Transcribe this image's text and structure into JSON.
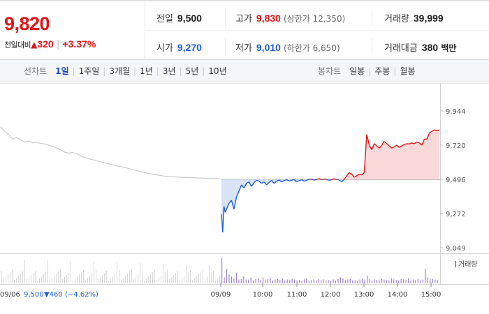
{
  "header": {
    "price": "9,820",
    "change_label": "전일대비",
    "change_arrow": "▲",
    "change_value": "320",
    "change_rate": "+3.37%",
    "stats": {
      "prev_close": {
        "label": "전일",
        "value": "9,500"
      },
      "high": {
        "label": "고가",
        "value": "9,830",
        "note": "(상한가 12,350)"
      },
      "volume": {
        "label": "거래량",
        "value": "39,999"
      },
      "open": {
        "label": "시가",
        "value": "9,270"
      },
      "low": {
        "label": "저가",
        "value": "9,010",
        "note": "(하한가 6,650)"
      },
      "turnover": {
        "label": "거래대금",
        "value": "380",
        "unit": "백만"
      }
    }
  },
  "line_tabs": {
    "label": "선차트",
    "items": [
      "1일",
      "1주일",
      "3개월",
      "1년",
      "3년",
      "5년",
      "10년"
    ],
    "active": "1일"
  },
  "candle_tabs": {
    "label": "봉차트",
    "items": [
      "일봉",
      "주봉",
      "월봉"
    ]
  },
  "colors": {
    "up": "#e2151a",
    "down": "#1f5ed4",
    "up_fill": "#fbd9da",
    "down_fill": "#d8e3f6",
    "prev_line": "#c9c9c9",
    "volume_bar": "#9b86c9"
  },
  "chart_data": {
    "type": "line",
    "y_ticks": [
      "9,944",
      "9,720",
      "9,496",
      "9,272",
      "9,049"
    ],
    "ylim": [
      9049,
      9944
    ],
    "baseline": 9496,
    "x_ticks": [
      "09/09",
      "10:00",
      "11:00",
      "12:00",
      "13:00",
      "14:00",
      "15:00"
    ],
    "prev_day_label": "09/06",
    "prev_day_close": "9,500",
    "prev_day_change": "▼460",
    "prev_day_rate": "(−4.62%)",
    "volume_legend": "거래량",
    "prev_day_series": [
      [
        0,
        9840
      ],
      [
        3,
        9810
      ],
      [
        6,
        9790
      ],
      [
        9,
        9760
      ],
      [
        12,
        9770
      ],
      [
        15,
        9755
      ],
      [
        18,
        9740
      ],
      [
        21,
        9748
      ],
      [
        24,
        9735
      ],
      [
        27,
        9740
      ],
      [
        30,
        9732
      ],
      [
        33,
        9728
      ],
      [
        36,
        9720
      ],
      [
        39,
        9712
      ],
      [
        42,
        9702
      ],
      [
        45,
        9690
      ],
      [
        48,
        9675
      ],
      [
        51,
        9668
      ],
      [
        54,
        9672
      ],
      [
        57,
        9665
      ],
      [
        60,
        9650
      ],
      [
        63,
        9640
      ],
      [
        66,
        9632
      ],
      [
        69,
        9625
      ],
      [
        72,
        9618
      ],
      [
        75,
        9612
      ],
      [
        78,
        9605
      ],
      [
        81,
        9598
      ],
      [
        84,
        9592
      ],
      [
        87,
        9585
      ],
      [
        90,
        9580
      ],
      [
        93,
        9575
      ],
      [
        96,
        9568
      ],
      [
        99,
        9560
      ],
      [
        102,
        9554
      ],
      [
        105,
        9548
      ],
      [
        108,
        9542
      ],
      [
        111,
        9536
      ],
      [
        114,
        9530
      ],
      [
        117,
        9526
      ],
      [
        120,
        9522
      ],
      [
        123,
        9518
      ],
      [
        126,
        9516
      ],
      [
        129,
        9514
      ],
      [
        132,
        9512
      ],
      [
        135,
        9510
      ],
      [
        138,
        9509
      ],
      [
        141,
        9508
      ],
      [
        144,
        9507
      ],
      [
        147,
        9506
      ],
      [
        150,
        9505
      ],
      [
        153,
        9504
      ],
      [
        156,
        9503
      ],
      [
        159,
        9502
      ],
      [
        162,
        9501
      ],
      [
        165,
        9500
      ]
    ],
    "today_series": [
      [
        0,
        9270
      ],
      [
        1,
        9150
      ],
      [
        2,
        9320
      ],
      [
        3,
        9280
      ],
      [
        4,
        9300
      ],
      [
        6,
        9340
      ],
      [
        8,
        9360
      ],
      [
        10,
        9300
      ],
      [
        12,
        9380
      ],
      [
        14,
        9420
      ],
      [
        16,
        9460
      ],
      [
        18,
        9440
      ],
      [
        20,
        9470
      ],
      [
        22,
        9480
      ],
      [
        24,
        9450
      ],
      [
        26,
        9475
      ],
      [
        28,
        9490
      ],
      [
        30,
        9485
      ],
      [
        32,
        9470
      ],
      [
        34,
        9480
      ],
      [
        36,
        9460
      ],
      [
        38,
        9475
      ],
      [
        40,
        9490
      ],
      [
        42,
        9470
      ],
      [
        44,
        9485
      ],
      [
        46,
        9492
      ],
      [
        48,
        9480
      ],
      [
        50,
        9488
      ],
      [
        52,
        9494
      ],
      [
        54,
        9486
      ],
      [
        56,
        9490
      ],
      [
        58,
        9496
      ],
      [
        60,
        9480
      ],
      [
        62,
        9488
      ],
      [
        64,
        9494
      ],
      [
        66,
        9484
      ],
      [
        68,
        9490
      ],
      [
        70,
        9496
      ],
      [
        72,
        9498
      ],
      [
        74,
        9492
      ],
      [
        76,
        9496
      ],
      [
        78,
        9500
      ],
      [
        80,
        9494
      ],
      [
        82,
        9498
      ],
      [
        84,
        9496
      ],
      [
        86,
        9490
      ],
      [
        88,
        9494
      ],
      [
        90,
        9500
      ],
      [
        92,
        9496
      ],
      [
        94,
        9492
      ],
      [
        96,
        9480
      ],
      [
        98,
        9496
      ],
      [
        100,
        9520
      ],
      [
        102,
        9540
      ],
      [
        104,
        9530
      ],
      [
        106,
        9510
      ],
      [
        108,
        9520
      ],
      [
        110,
        9530
      ],
      [
        112,
        9525
      ],
      [
        114,
        9540
      ],
      [
        116,
        9790
      ],
      [
        118,
        9720
      ],
      [
        120,
        9690
      ],
      [
        122,
        9730
      ],
      [
        124,
        9715
      ],
      [
        126,
        9700
      ],
      [
        128,
        9720
      ],
      [
        130,
        9745
      ],
      [
        132,
        9730
      ],
      [
        134,
        9715
      ],
      [
        136,
        9700
      ],
      [
        138,
        9710
      ],
      [
        140,
        9720
      ],
      [
        142,
        9705
      ],
      [
        144,
        9715
      ],
      [
        146,
        9725
      ],
      [
        148,
        9730
      ],
      [
        150,
        9728
      ],
      [
        152,
        9735
      ],
      [
        154,
        9730
      ],
      [
        156,
        9740
      ],
      [
        158,
        9735
      ],
      [
        160,
        9720
      ],
      [
        162,
        9760
      ],
      [
        164,
        9760
      ],
      [
        166,
        9800
      ],
      [
        168,
        9810
      ],
      [
        170,
        9820
      ],
      [
        172,
        9815
      ],
      [
        174,
        9820
      ]
    ],
    "today_volume": [
      52,
      12,
      30,
      18,
      14,
      10,
      22,
      8,
      9,
      14,
      8,
      7,
      12,
      6,
      9,
      10,
      7,
      12,
      8,
      9,
      11,
      6,
      8,
      9,
      7,
      10,
      6,
      8,
      7,
      9,
      8,
      6,
      7,
      5,
      8,
      10,
      6,
      7,
      8,
      6,
      9,
      7,
      8,
      6,
      7,
      5,
      8,
      6,
      9,
      12,
      10,
      7,
      8,
      9,
      6,
      7,
      5,
      8,
      10,
      7,
      16,
      9,
      6,
      8,
      7,
      6,
      9,
      8,
      7,
      6,
      10,
      8,
      7,
      6,
      9,
      8,
      7,
      10,
      6,
      8,
      7,
      9,
      6,
      8,
      30,
      12,
      10,
      9,
      8,
      7
    ]
  }
}
